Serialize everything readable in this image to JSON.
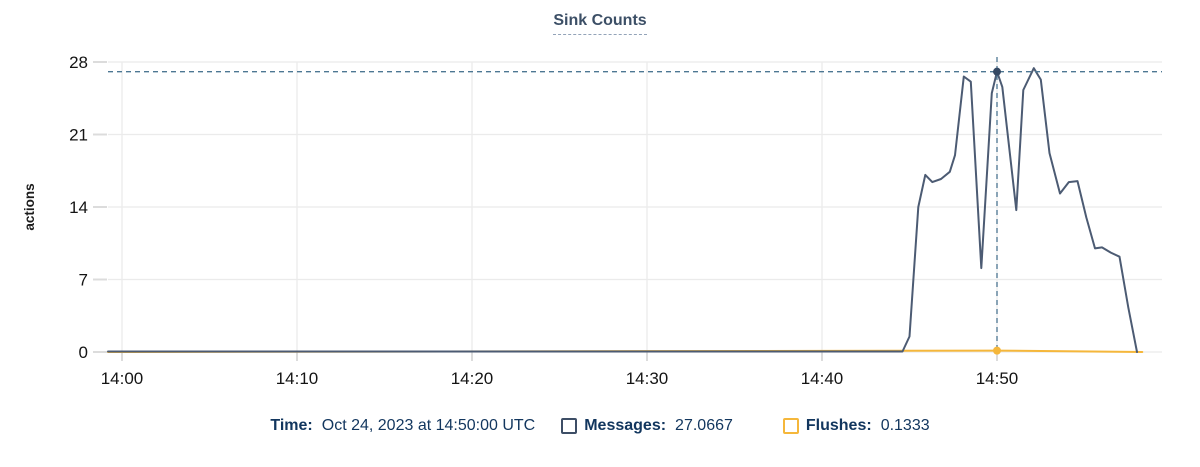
{
  "title": "Sink Counts",
  "colors": {
    "title_text": "#3c4f66",
    "title_underline": "#93a3b8",
    "legend_text": "#12365e",
    "axis_text": "#141414",
    "axis_label_text": "#1c1c1c",
    "messages_line": "#4c5b73",
    "messages_marker": "#344863",
    "flushes_line": "#f5b73b",
    "flushes_marker": "#f5b73b",
    "crosshair": "#4d7793",
    "gridline": "#ebebeb",
    "tick": "#dcdcdc"
  },
  "tooltip": {
    "time_label": "Time:",
    "time_value": "Oct 24, 2023 at 14:50:00 UTC",
    "messages_label": "Messages:",
    "messages_value": "27.0667",
    "flushes_label": "Flushes:",
    "flushes_value": "0.1333"
  },
  "chart_data": {
    "type": "line",
    "title": "Sink Counts",
    "xlabel": "",
    "ylabel": "actions",
    "grid": true,
    "legend_position": "bottom",
    "ylim": [
      0,
      28
    ],
    "y_ticks": [
      0,
      7,
      14,
      21,
      28
    ],
    "x_tick_labels": [
      "14:00",
      "14:10",
      "14:20",
      "14:30",
      "14:40",
      "14:50"
    ],
    "x_tick_minutes": [
      0,
      10,
      20,
      30,
      40,
      50
    ],
    "x_domain_minutes": [
      -0.8,
      58.3
    ],
    "x_start_time": "14:00 UTC, Oct 24 2023",
    "series": [
      {
        "name": "Flushes",
        "color": "#f5b73b",
        "points_t_minutes_value": [
          [
            -0.8,
            0
          ],
          [
            50.0,
            0.1333
          ],
          [
            58.3,
            0
          ]
        ]
      },
      {
        "name": "Messages",
        "color": "#4c5b73",
        "points_t_minutes_value": [
          [
            -0.8,
            0.05
          ],
          [
            44.6,
            0.05
          ],
          [
            45.0,
            1.5
          ],
          [
            45.5,
            14.0
          ],
          [
            45.9,
            17.1
          ],
          [
            46.3,
            16.4
          ],
          [
            46.8,
            16.7
          ],
          [
            47.3,
            17.4
          ],
          [
            47.6,
            19.0
          ],
          [
            48.1,
            26.6
          ],
          [
            48.5,
            26.1
          ],
          [
            49.1,
            8.1
          ],
          [
            49.7,
            25.0
          ],
          [
            50.0,
            27.0667
          ],
          [
            50.3,
            25.6
          ],
          [
            51.1,
            13.7
          ],
          [
            51.5,
            25.3
          ],
          [
            52.1,
            27.4
          ],
          [
            52.5,
            26.3
          ],
          [
            53.0,
            19.2
          ],
          [
            53.6,
            15.3
          ],
          [
            54.1,
            16.4
          ],
          [
            54.6,
            16.5
          ],
          [
            55.1,
            13.0
          ],
          [
            55.6,
            10.0
          ],
          [
            56.0,
            10.1
          ],
          [
            56.5,
            9.6
          ],
          [
            57.0,
            9.2
          ],
          [
            57.5,
            4.3
          ],
          [
            58.0,
            0
          ]
        ]
      }
    ],
    "crosshair": {
      "t_minutes": 50,
      "time_text": "Oct 24, 2023 at 14:50:00 UTC",
      "messages_value": 27.0667,
      "flushes_value": 0.1333
    }
  }
}
